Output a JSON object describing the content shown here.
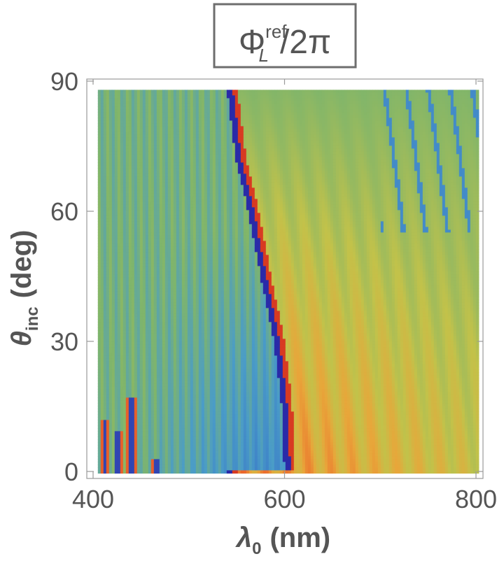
{
  "chart_data": {
    "type": "heatmap",
    "title": {
      "symbol": "Φ",
      "superscript": "ref",
      "subscript": "L",
      "suffix": "/2π"
    },
    "xlabel": {
      "symbol": "λ",
      "subscript": "0",
      "unit": "(nm)"
    },
    "ylabel": {
      "symbol": "θ",
      "subscript": "inc",
      "unit": "(deg)"
    },
    "xlim": [
      400,
      800
    ],
    "ylim": [
      0,
      90
    ],
    "x_ticks": [
      400,
      600,
      800
    ],
    "y_ticks": [
      0,
      30,
      60,
      90
    ],
    "x_tick_labels": [
      "400",
      "600",
      "800"
    ],
    "y_tick_labels": [
      "0",
      "30",
      "60",
      "90"
    ],
    "data_range": {
      "x": [
        405,
        800
      ],
      "y": [
        0,
        88
      ]
    },
    "value_range": [
      0,
      1
    ],
    "colormap": [
      "#2a2aa8",
      "#3a78c8",
      "#4a9cc8",
      "#7fb56b",
      "#c2c24a",
      "#e8a63a",
      "#ec6a2c",
      "#d0281e"
    ],
    "features": {
      "dark_boundary": [
        [
          603,
          0
        ],
        [
          600,
          15
        ],
        [
          592,
          30
        ],
        [
          578,
          45
        ],
        [
          565,
          60
        ],
        [
          552,
          72
        ],
        [
          543,
          88
        ]
      ],
      "left_dark_stripes": [
        {
          "x": 412,
          "y_max": 12
        },
        {
          "x": 426,
          "y_max": 9
        },
        {
          "x": 440,
          "y_max": 17
        },
        {
          "x": 466,
          "y_max": 3
        }
      ]
    },
    "grid": false,
    "legend": "none"
  }
}
